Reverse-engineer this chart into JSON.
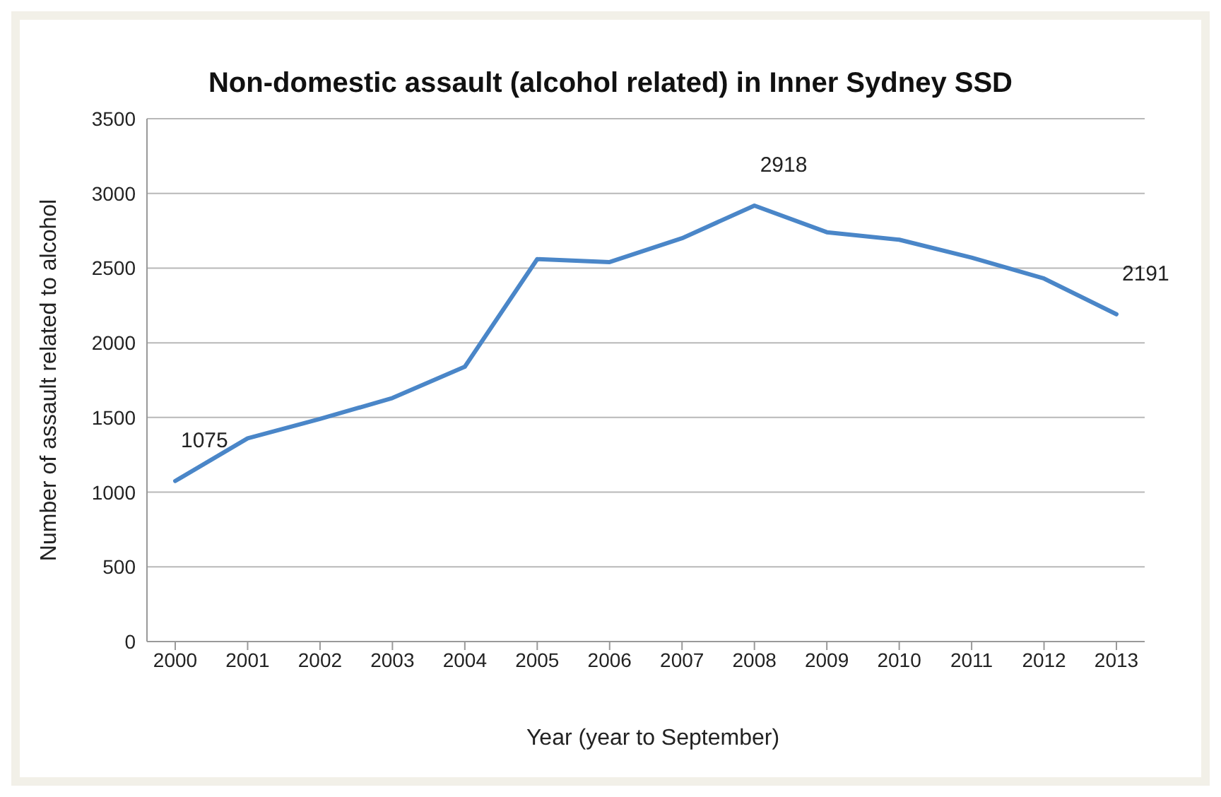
{
  "chart_data": {
    "type": "line",
    "title": "Non-domestic assault (alcohol related) in Inner Sydney SSD",
    "xlabel": "Year (year to September)",
    "ylabel": "Number of assault related to alcohol",
    "categories": [
      "2000",
      "2001",
      "2002",
      "2003",
      "2004",
      "2005",
      "2006",
      "2007",
      "2008",
      "2009",
      "2010",
      "2011",
      "2012",
      "2013"
    ],
    "series": [
      {
        "color": "#4a86c8",
        "values": [
          1075,
          1360,
          1490,
          1630,
          1840,
          2560,
          2540,
          2700,
          2918,
          2740,
          2690,
          2570,
          2430,
          2191
        ],
        "value_labels": [
          "1075",
          null,
          null,
          null,
          null,
          null,
          null,
          null,
          "2918",
          null,
          null,
          null,
          null,
          "2191"
        ]
      }
    ],
    "ylim": [
      0,
      3500
    ],
    "yticks": [
      0,
      500,
      1000,
      1500,
      2000,
      2500,
      3000,
      3500
    ],
    "grid": "y",
    "legend": false,
    "marker": "none",
    "line_style": "solid"
  }
}
